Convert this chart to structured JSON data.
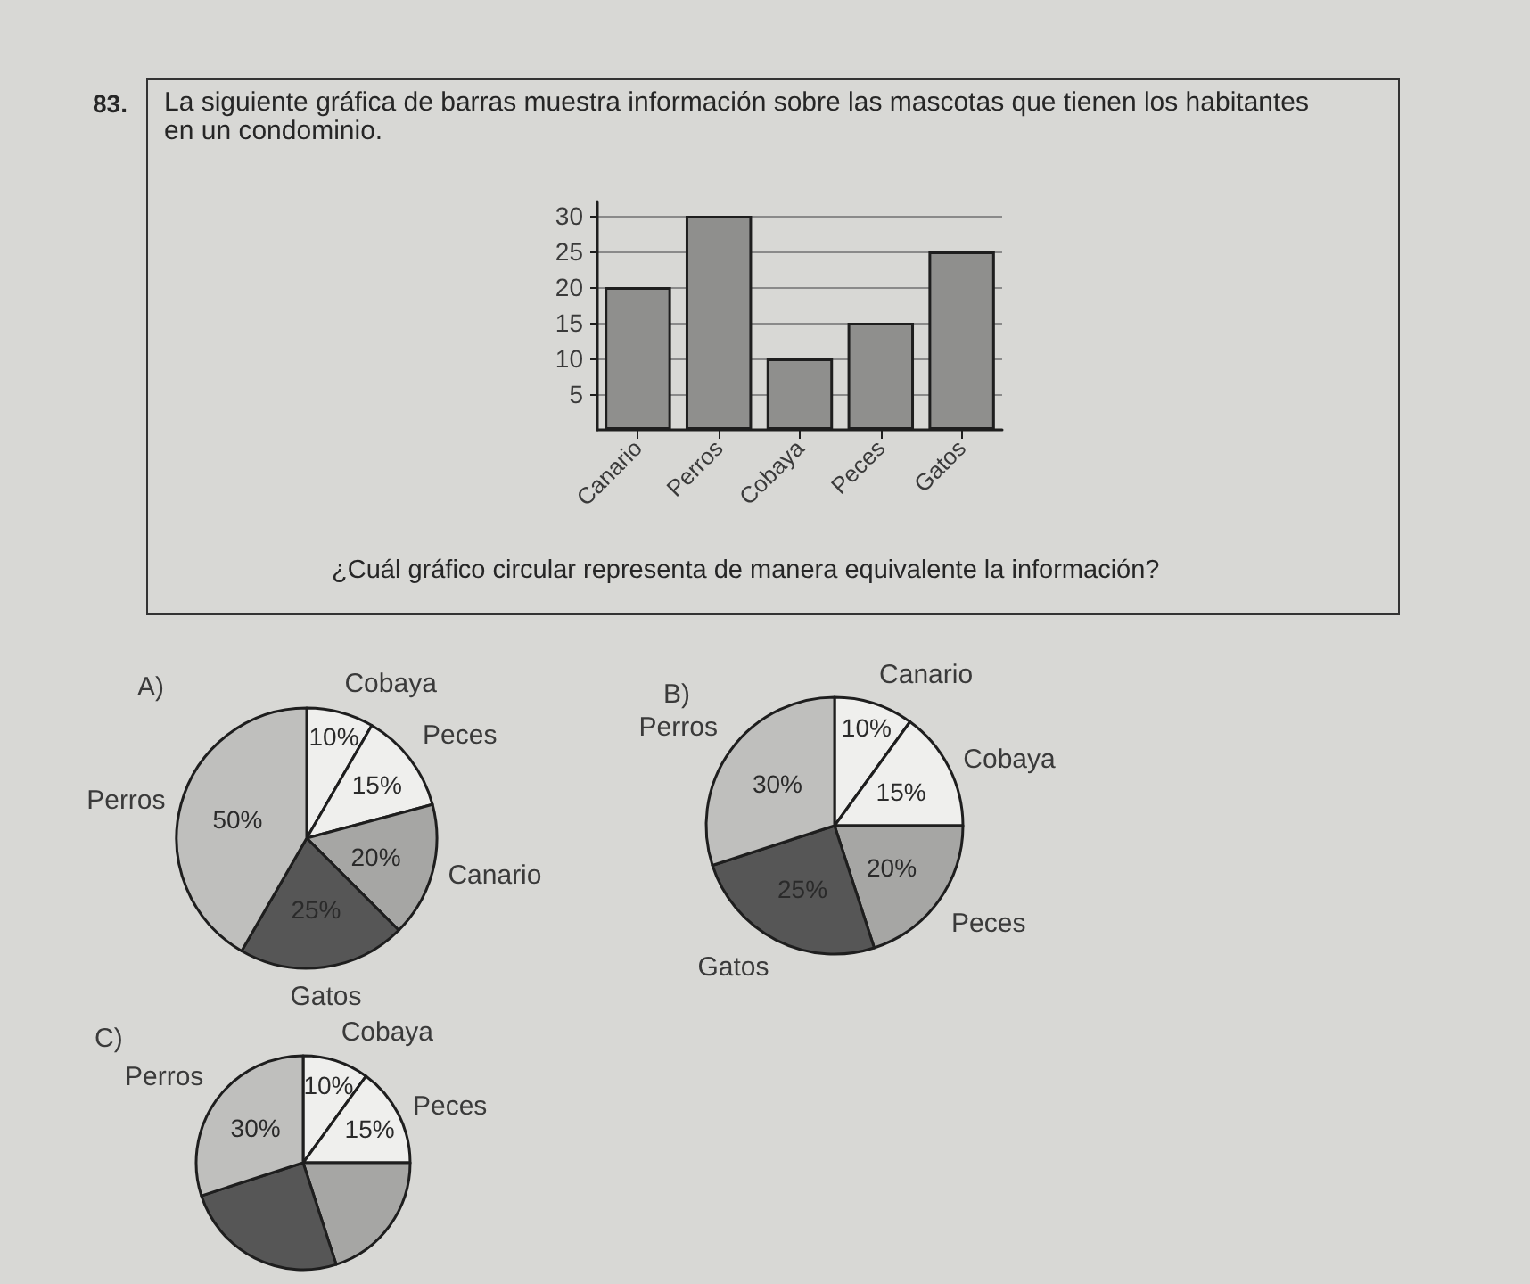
{
  "chart_data": [
    {
      "type": "bar",
      "title": "La siguiente gráfica de barras muestra información sobre las mascotas que tienen los habitantes en un condominio.",
      "annotations": [
        "83.",
        "¿Cuál gráfico circular representa de manera equivalente la información?"
      ],
      "categories": [
        "Canario",
        "Perros",
        "Cobaya",
        "Peces",
        "Gatos"
      ],
      "values": [
        20,
        30,
        10,
        15,
        25
      ],
      "color": "#8f8f8d",
      "ylim": [
        0,
        32
      ],
      "yticks": [
        5,
        10,
        15,
        20,
        25,
        30
      ],
      "grid": "y"
    },
    {
      "type": "pie",
      "title": "A)",
      "categories": [
        "Cobaya",
        "Peces",
        "Canario",
        "Gatos",
        "Perros"
      ],
      "values": [
        10,
        15,
        20,
        25,
        50
      ],
      "value_labels": [
        "10%",
        "15%",
        "20%",
        "25%",
        "50%"
      ],
      "colors": [
        "#efefed",
        "#efefed",
        "#a6a6a4",
        "#565656",
        "#bfbfbd"
      ]
    },
    {
      "type": "pie",
      "title": "B)",
      "categories": [
        "Canario",
        "Cobaya",
        "Peces",
        "Gatos",
        "Perros"
      ],
      "values": [
        10,
        15,
        20,
        25,
        30
      ],
      "value_labels": [
        "10%",
        "15%",
        "20%",
        "25%",
        "30%"
      ],
      "colors": [
        "#efefed",
        "#efefed",
        "#a6a6a4",
        "#565656",
        "#bfbfbd"
      ]
    },
    {
      "type": "pie",
      "title": "C)",
      "categories": [
        "Cobaya",
        "Peces",
        null,
        null,
        "Perros"
      ],
      "values": [
        10,
        15,
        20,
        25,
        30
      ],
      "value_labels": [
        "10%",
        "15%",
        null,
        null,
        "30%"
      ],
      "colors": [
        "#efefed",
        "#efefed",
        "#a6a6a4",
        "#565656",
        "#bfbfbd"
      ]
    }
  ]
}
